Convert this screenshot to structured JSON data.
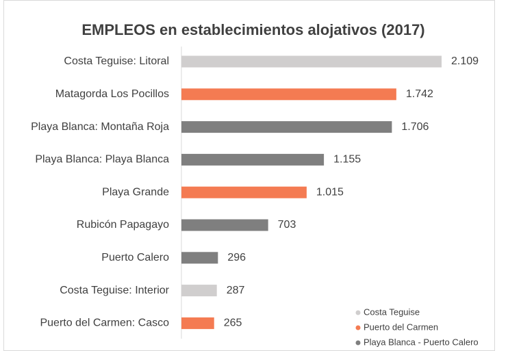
{
  "chart_data": {
    "type": "bar",
    "orientation": "horizontal",
    "title": "EMPLEOS en establecimientos alojativos (2017)",
    "categories": [
      "Costa Teguise: Litoral",
      "Matagorda Los Pocillos",
      "Playa Blanca: Montaña Roja",
      "Playa Blanca: Playa Blanca",
      "Playa Grande",
      "Rubicón Papagayo",
      "Puerto Calero",
      "Costa Teguise: Interior",
      "Puerto del Carmen: Casco"
    ],
    "series": [
      {
        "name": "Costa Teguise",
        "color": "#d0cece",
        "values": [
          2109,
          null,
          null,
          null,
          null,
          null,
          null,
          287,
          null
        ],
        "value_labels": [
          "2.109",
          null,
          null,
          null,
          null,
          null,
          null,
          "287",
          null
        ]
      },
      {
        "name": "Puerto del Carmen",
        "color": "#f47b52",
        "values": [
          null,
          1742,
          null,
          null,
          1015,
          null,
          null,
          null,
          265
        ],
        "value_labels": [
          null,
          "1.742",
          null,
          null,
          "1.015",
          null,
          null,
          null,
          "265"
        ]
      },
      {
        "name": "Playa Blanca - Puerto Calero",
        "color": "#7f7f7f",
        "values": [
          null,
          null,
          1706,
          1155,
          null,
          703,
          296,
          null,
          null
        ],
        "value_labels": [
          null,
          null,
          "1.706",
          "1.155",
          null,
          "703",
          "296",
          null,
          null
        ]
      }
    ],
    "legend": "bottom-right"
  }
}
